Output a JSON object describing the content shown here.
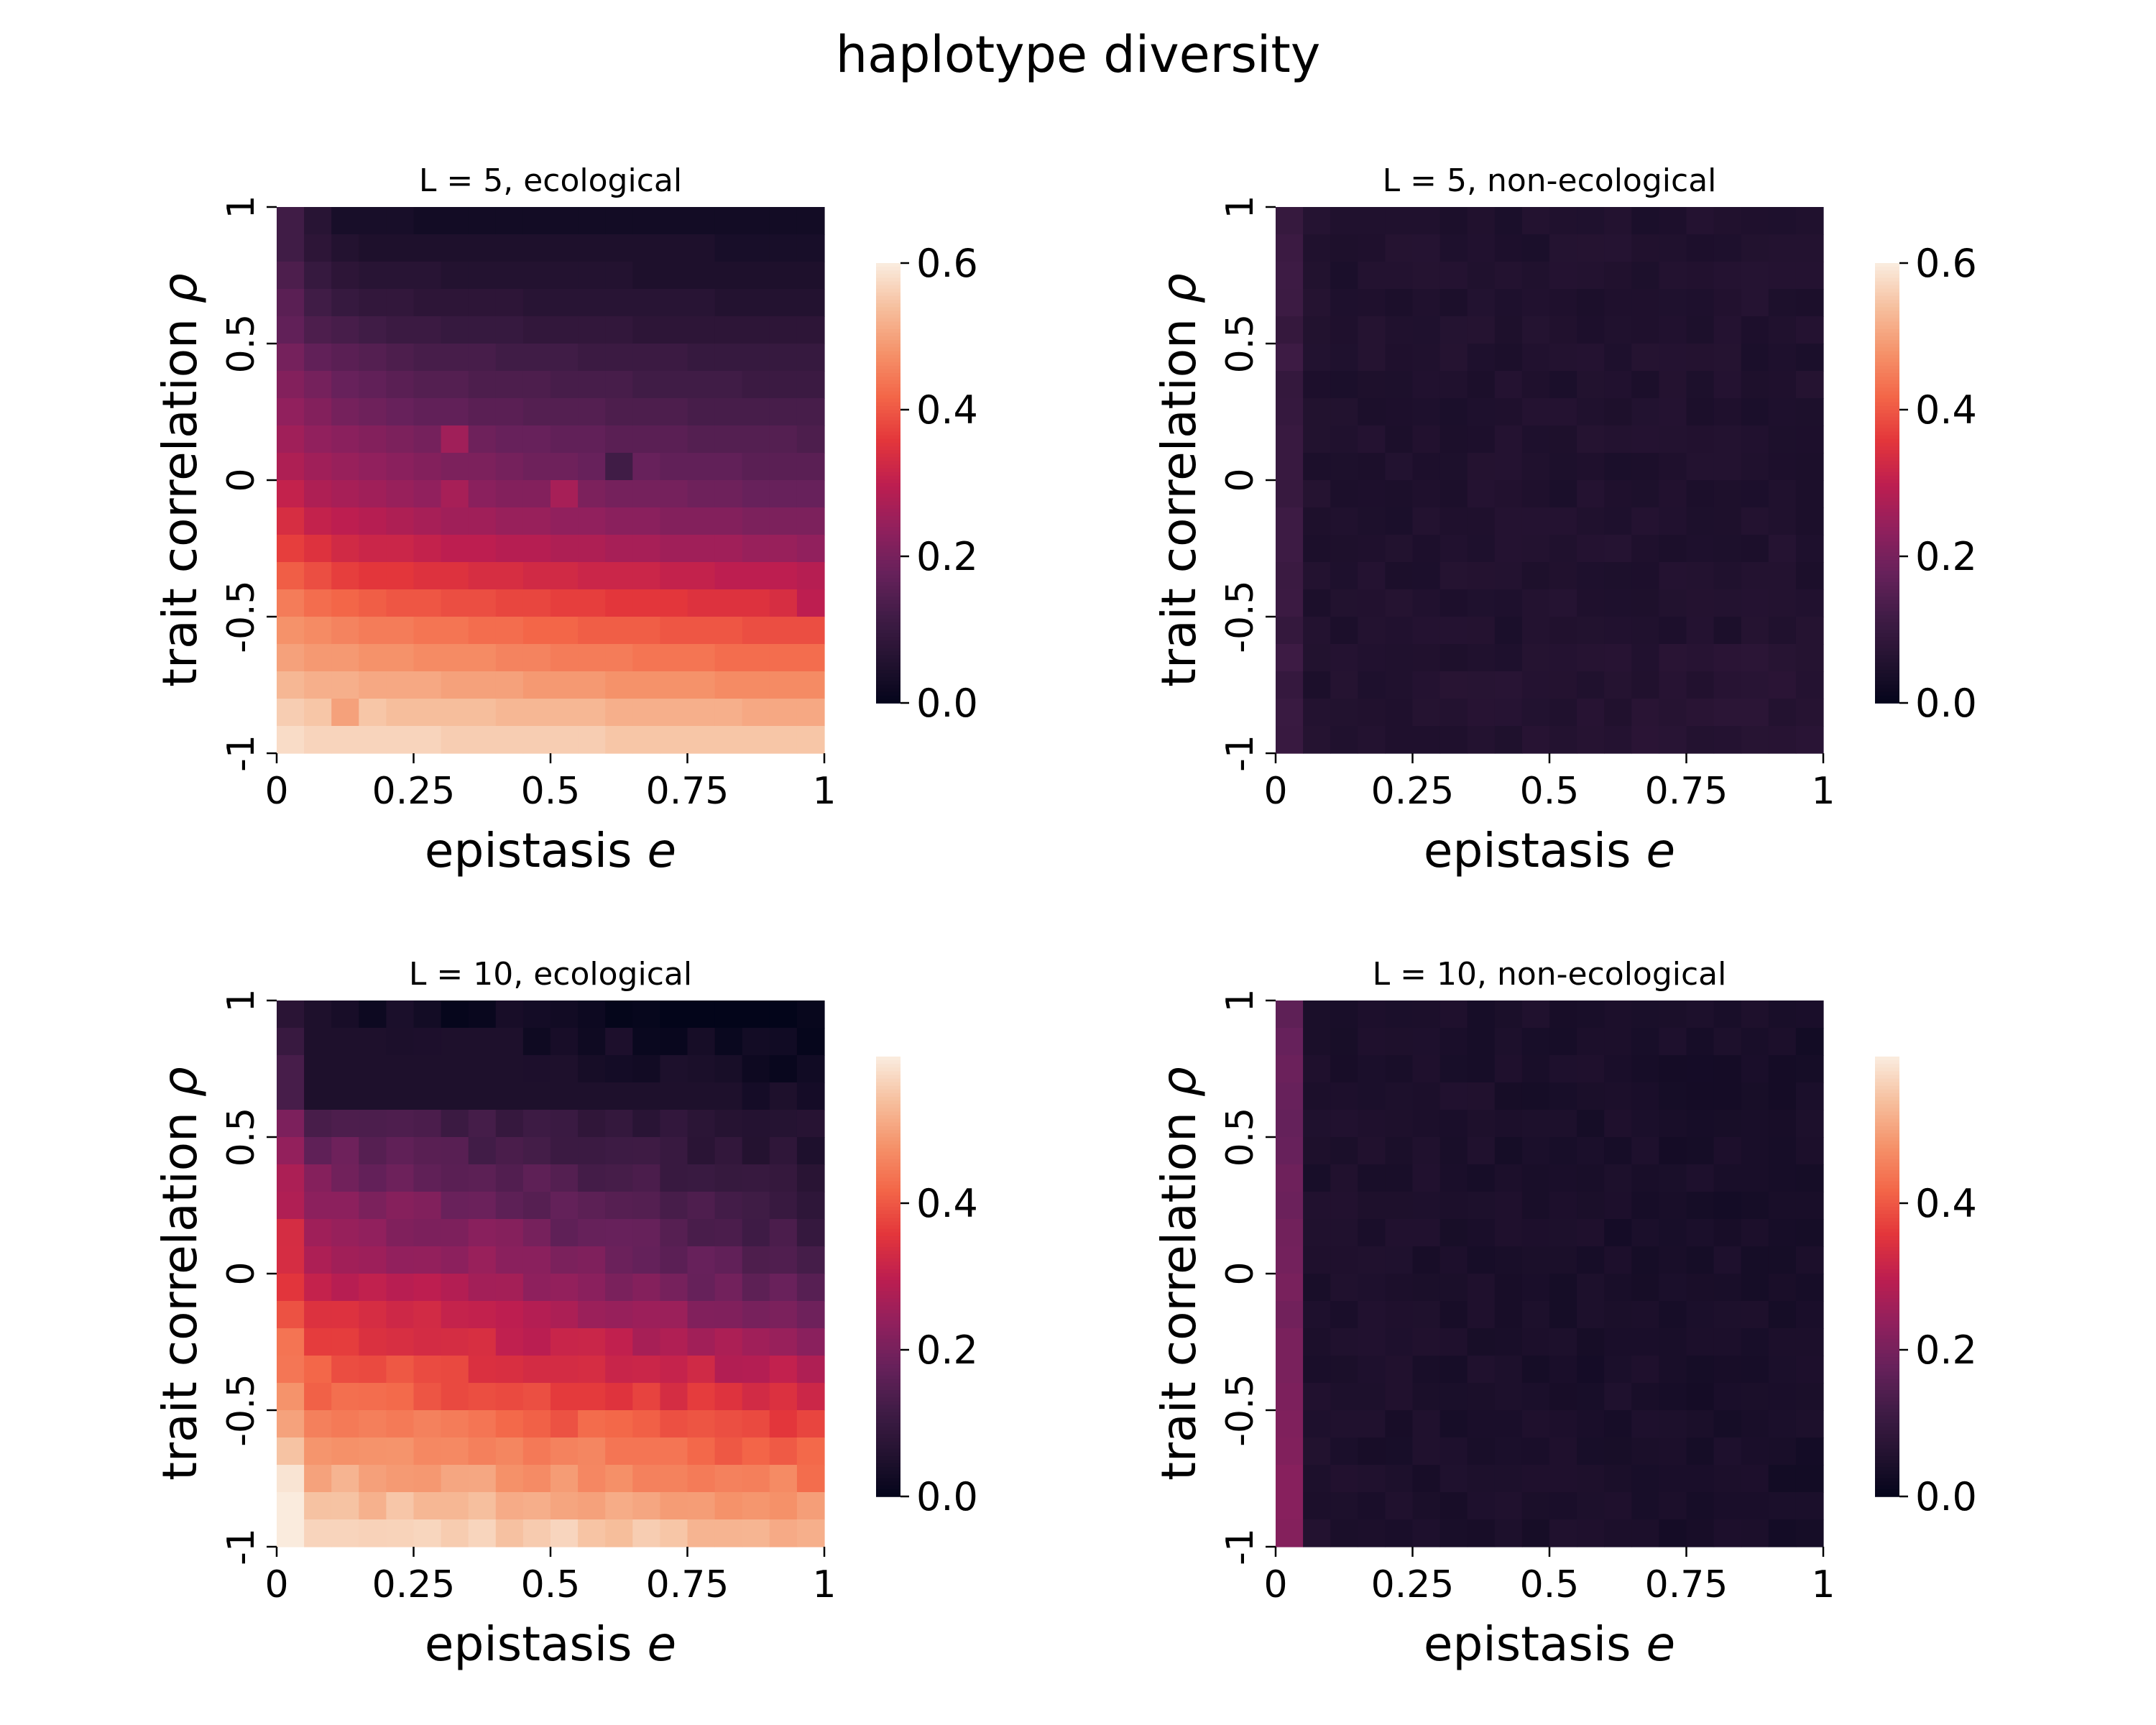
{
  "figure": {
    "suptitle": "haplotype diversity"
  },
  "colormap": "rocket",
  "chart_data": [
    {
      "type": "heatmap",
      "title": "L = 5, ecological",
      "xlabel": "epistasis e",
      "ylabel": "trait correlation ρ",
      "x_ticks": [
        "0",
        "0.25",
        "0.5",
        "0.75",
        "1"
      ],
      "y_ticks": [
        "1",
        "0.5",
        "0",
        "-0.5",
        "-1"
      ],
      "xlim": [
        0,
        1
      ],
      "ylim": [
        -1,
        1
      ],
      "grid_size": 20,
      "colorbar": {
        "range": [
          0,
          0.6
        ],
        "ticks": [
          "0.6",
          "0.4",
          "0.2",
          "0.0"
        ],
        "tick_values": [
          0.6,
          0.4,
          0.2,
          0.0
        ]
      },
      "row_values_top_to_bottom": [
        0.12,
        0.07,
        0.04,
        0.04,
        0.04,
        0.03,
        0.03,
        0.03,
        0.03,
        0.03,
        0.03,
        0.03,
        0.03,
        0.03,
        0.03,
        0.03,
        0.03,
        0.03,
        0.03,
        0.03,
        0.12,
        0.08,
        0.06,
        0.05,
        0.05,
        0.05,
        0.05,
        0.05,
        0.05,
        0.05,
        0.05,
        0.05,
        0.05,
        0.05,
        0.05,
        0.05,
        0.04,
        0.04,
        0.04,
        0.04,
        0.14,
        0.1,
        0.08,
        0.07,
        0.07,
        0.07,
        0.06,
        0.06,
        0.06,
        0.06,
        0.06,
        0.06,
        0.06,
        0.05,
        0.05,
        0.05,
        0.05,
        0.05,
        0.05,
        0.05,
        0.16,
        0.12,
        0.1,
        0.09,
        0.09,
        0.08,
        0.08,
        0.08,
        0.08,
        0.07,
        0.07,
        0.07,
        0.07,
        0.07,
        0.07,
        0.07,
        0.06,
        0.06,
        0.06,
        0.06,
        0.17,
        0.14,
        0.13,
        0.12,
        0.11,
        0.11,
        0.1,
        0.1,
        0.1,
        0.09,
        0.09,
        0.09,
        0.09,
        0.08,
        0.08,
        0.08,
        0.08,
        0.08,
        0.08,
        0.08,
        0.2,
        0.17,
        0.16,
        0.15,
        0.14,
        0.13,
        0.13,
        0.13,
        0.12,
        0.12,
        0.12,
        0.11,
        0.11,
        0.11,
        0.11,
        0.1,
        0.1,
        0.1,
        0.1,
        0.1,
        0.22,
        0.2,
        0.18,
        0.17,
        0.16,
        0.15,
        0.15,
        0.14,
        0.14,
        0.14,
        0.13,
        0.13,
        0.13,
        0.12,
        0.12,
        0.12,
        0.12,
        0.11,
        0.11,
        0.11,
        0.24,
        0.22,
        0.2,
        0.19,
        0.18,
        0.17,
        0.17,
        0.16,
        0.16,
        0.15,
        0.15,
        0.15,
        0.14,
        0.14,
        0.14,
        0.13,
        0.13,
        0.13,
        0.13,
        0.13,
        0.26,
        0.24,
        0.23,
        0.22,
        0.21,
        0.2,
        0.26,
        0.19,
        0.18,
        0.18,
        0.17,
        0.17,
        0.16,
        0.16,
        0.16,
        0.15,
        0.15,
        0.15,
        0.15,
        0.14,
        0.28,
        0.26,
        0.25,
        0.24,
        0.23,
        0.22,
        0.21,
        0.21,
        0.2,
        0.19,
        0.19,
        0.18,
        0.12,
        0.18,
        0.17,
        0.17,
        0.17,
        0.16,
        0.16,
        0.16,
        0.31,
        0.28,
        0.27,
        0.26,
        0.25,
        0.24,
        0.27,
        0.23,
        0.22,
        0.22,
        0.27,
        0.21,
        0.2,
        0.2,
        0.2,
        0.19,
        0.19,
        0.18,
        0.18,
        0.18,
        0.34,
        0.31,
        0.3,
        0.29,
        0.28,
        0.27,
        0.26,
        0.26,
        0.25,
        0.25,
        0.24,
        0.24,
        0.23,
        0.23,
        0.22,
        0.22,
        0.22,
        0.21,
        0.21,
        0.21,
        0.37,
        0.35,
        0.33,
        0.32,
        0.32,
        0.31,
        0.3,
        0.3,
        0.29,
        0.29,
        0.28,
        0.28,
        0.27,
        0.27,
        0.26,
        0.26,
        0.26,
        0.25,
        0.25,
        0.24,
        0.41,
        0.39,
        0.37,
        0.36,
        0.36,
        0.35,
        0.35,
        0.34,
        0.34,
        0.33,
        0.33,
        0.32,
        0.32,
        0.32,
        0.31,
        0.31,
        0.3,
        0.3,
        0.3,
        0.29,
        0.45,
        0.43,
        0.42,
        0.41,
        0.4,
        0.4,
        0.39,
        0.39,
        0.38,
        0.38,
        0.37,
        0.37,
        0.36,
        0.36,
        0.36,
        0.35,
        0.35,
        0.35,
        0.34,
        0.3,
        0.48,
        0.47,
        0.46,
        0.45,
        0.45,
        0.44,
        0.44,
        0.43,
        0.43,
        0.42,
        0.42,
        0.41,
        0.41,
        0.41,
        0.4,
        0.4,
        0.4,
        0.39,
        0.39,
        0.39,
        0.5,
        0.49,
        0.49,
        0.48,
        0.48,
        0.47,
        0.47,
        0.47,
        0.46,
        0.46,
        0.45,
        0.45,
        0.45,
        0.44,
        0.44,
        0.44,
        0.43,
        0.43,
        0.43,
        0.43,
        0.53,
        0.52,
        0.52,
        0.51,
        0.51,
        0.51,
        0.5,
        0.5,
        0.5,
        0.49,
        0.49,
        0.49,
        0.48,
        0.48,
        0.48,
        0.48,
        0.47,
        0.47,
        0.47,
        0.47,
        0.56,
        0.55,
        0.5,
        0.55,
        0.54,
        0.54,
        0.54,
        0.54,
        0.53,
        0.53,
        0.53,
        0.53,
        0.52,
        0.52,
        0.52,
        0.52,
        0.52,
        0.51,
        0.51,
        0.51,
        0.58,
        0.57,
        0.57,
        0.57,
        0.57,
        0.57,
        0.56,
        0.56,
        0.56,
        0.56,
        0.56,
        0.56,
        0.55,
        0.55,
        0.55,
        0.55,
        0.55,
        0.55,
        0.55,
        0.55
      ]
    },
    {
      "type": "heatmap",
      "title": "L = 5, non-ecological",
      "xlabel": "epistasis e",
      "ylabel": "trait correlation ρ",
      "x_ticks": [
        "0",
        "0.25",
        "0.5",
        "0.75",
        "1"
      ],
      "y_ticks": [
        "1",
        "0.5",
        "0",
        "-0.5",
        "-1"
      ],
      "xlim": [
        0,
        1
      ],
      "ylim": [
        -1,
        1
      ],
      "grid_size": 20,
      "colorbar": {
        "range": [
          0,
          0.6
        ],
        "ticks": [
          "0.6",
          "0.4",
          "0.2",
          "0.0"
        ],
        "tick_values": [
          0.6,
          0.4,
          0.2,
          0.0
        ]
      },
      "row_values_top_to_bottom": "approximately uniform 0.04–0.10; left column slightly higher (0.10–0.13); bottom rows slightly higher toward right (~0.09)"
    },
    {
      "type": "heatmap",
      "title": "L = 10, ecological",
      "xlabel": "epistasis e",
      "ylabel": "trait correlation ρ",
      "x_ticks": [
        "0",
        "0.25",
        "0.5",
        "0.75",
        "1"
      ],
      "y_ticks": [
        "1",
        "0.5",
        "0",
        "-0.5",
        "-1"
      ],
      "xlim": [
        0,
        1
      ],
      "ylim": [
        -1,
        1
      ],
      "grid_size": 20,
      "colorbar": {
        "range": [
          0,
          0.6
        ],
        "ticks": [
          "0.4",
          "0.2",
          "0.0"
        ],
        "tick_values": [
          0.4,
          0.2,
          0.0
        ]
      },
      "row_values_top_to_bottom": "top ~0.03–0.16, middle ~0.15–0.35, bottom ~0.50–0.60; left column warmer"
    },
    {
      "type": "heatmap",
      "title": "L = 10, non-ecological",
      "xlabel": "epistasis e",
      "ylabel": "trait correlation ρ",
      "x_ticks": [
        "0",
        "0.25",
        "0.5",
        "0.75",
        "1"
      ],
      "y_ticks": [
        "1",
        "0.5",
        "0",
        "-0.5",
        "-1"
      ],
      "xlim": [
        0,
        1
      ],
      "ylim": [
        -1,
        1
      ],
      "grid_size": 20,
      "colorbar": {
        "range": [
          0,
          0.6
        ],
        "ticks": [
          "0.4",
          "0.2",
          "0.0"
        ],
        "tick_values": [
          0.4,
          0.2,
          0.0
        ]
      },
      "row_values_top_to_bottom": "approximately uniform 0.04–0.09; left column ~0.15–0.20"
    }
  ]
}
